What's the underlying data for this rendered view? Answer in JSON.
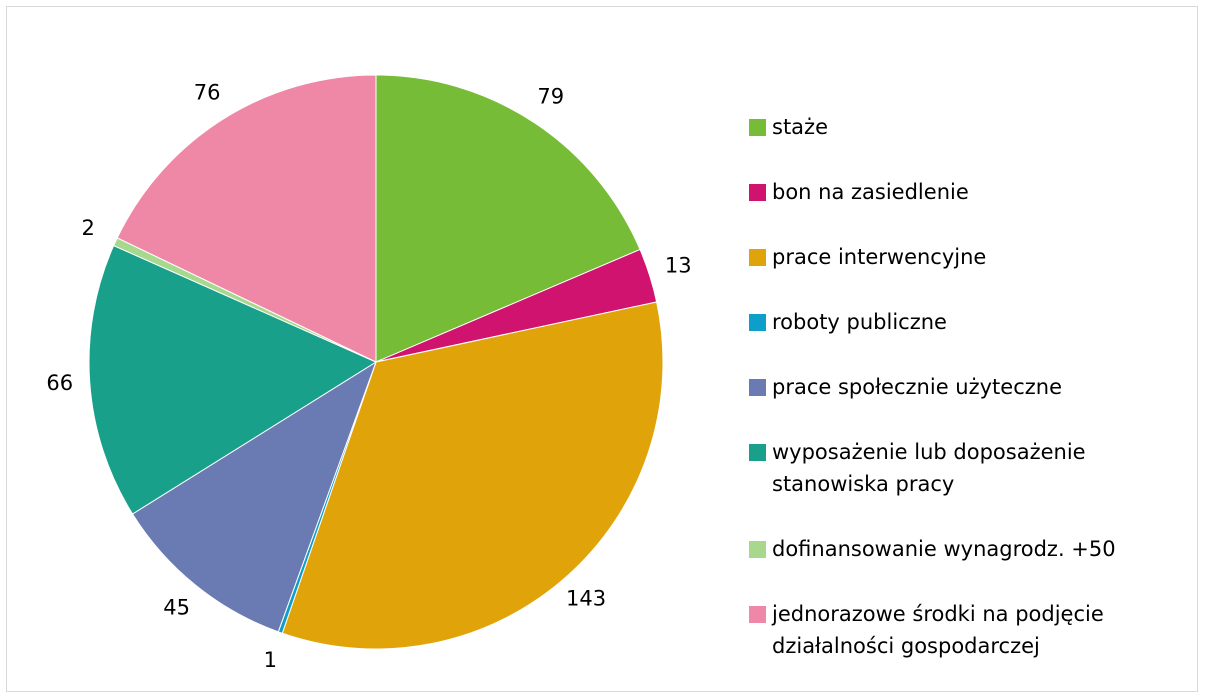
{
  "chart_data": {
    "type": "pie",
    "categories": [
      "staże",
      "bon na zasiedlenie",
      "prace interwencyjne",
      "roboty publiczne",
      "prace społecznie użyteczne",
      "wyposażenie lub doposażenie stanowiska pracy",
      "dofinansowanie wynagrodz. +50",
      "jednorazowe środki na podjęcie działalności gospodarczej"
    ],
    "values": [
      79,
      13,
      143,
      1,
      45,
      66,
      2,
      76
    ],
    "colors": [
      "#76bc37",
      "#d0136f",
      "#e1a30a",
      "#0d9ec9",
      "#6a7bb3",
      "#18a08b",
      "#a6d98d",
      "#ef88a6"
    ],
    "legend": "right"
  }
}
